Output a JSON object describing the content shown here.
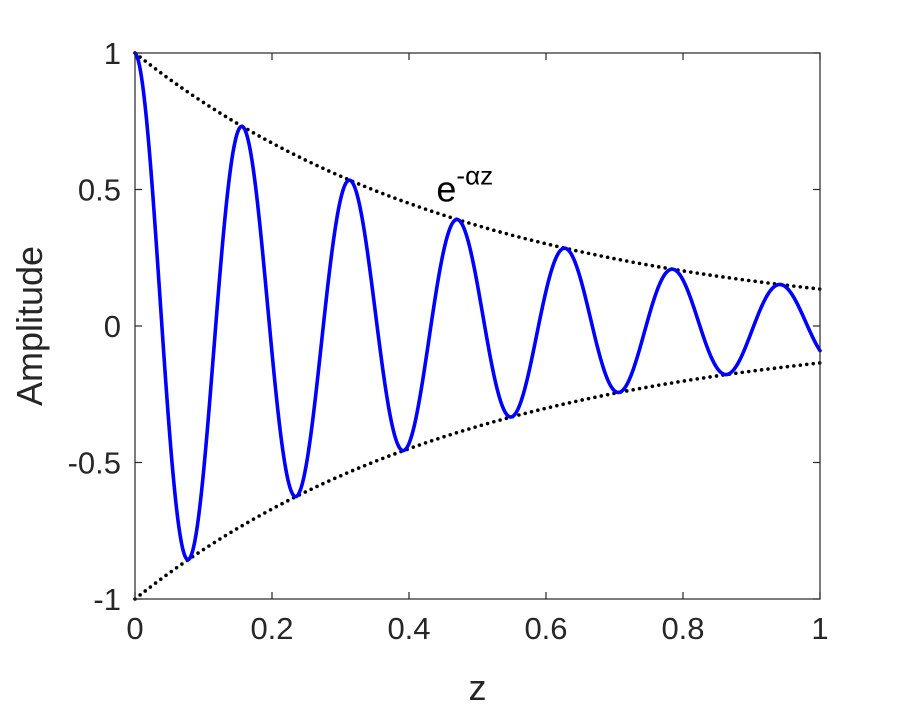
{
  "chart_data": {
    "type": "line",
    "title": "",
    "xlabel": "z",
    "ylabel": "Amplitude",
    "xlim": [
      0,
      1
    ],
    "ylim": [
      -1,
      1
    ],
    "x_ticks": [
      0,
      0.2,
      0.4,
      0.6,
      0.8,
      1
    ],
    "x_tick_labels": [
      "0",
      "0.2",
      "0.4",
      "0.6",
      "0.8",
      "1"
    ],
    "y_ticks": [
      -1,
      -0.5,
      0,
      0.5,
      1
    ],
    "y_tick_labels": [
      "-1",
      "-0.5",
      "0",
      "0.5",
      "1"
    ],
    "grid": false,
    "box": true,
    "annotation": {
      "base": "e",
      "exponent": "-αz",
      "x": 0.44,
      "y": 0.5
    },
    "series": [
      {
        "style": "solid",
        "color": "#0000ff",
        "function": "exp(-2*z)*cos(40*z)",
        "x": [
          0,
          0.0785,
          0.157,
          0.2355,
          0.314,
          0.3925,
          0.471,
          0.5495,
          0.628,
          0.7065,
          0.785,
          0.8635,
          0.942,
          1
        ],
        "y": [
          1,
          -0.855,
          0.731,
          -0.625,
          0.534,
          -0.456,
          0.39,
          -0.333,
          0.285,
          -0.244,
          0.208,
          -0.178,
          0.152,
          -0.091
        ]
      },
      {
        "style": "dotted",
        "color": "#000000",
        "function": "exp(-2*z)",
        "x": [
          0,
          0.2,
          0.4,
          0.6,
          0.8,
          1
        ],
        "y": [
          1,
          0.67,
          0.449,
          0.301,
          0.202,
          0.135
        ]
      },
      {
        "style": "dotted",
        "color": "#000000",
        "function": "-exp(-2*z)",
        "x": [
          0,
          0.2,
          0.4,
          0.6,
          0.8,
          1
        ],
        "y": [
          -1,
          -0.67,
          -0.449,
          -0.301,
          -0.202,
          -0.135
        ]
      }
    ]
  }
}
